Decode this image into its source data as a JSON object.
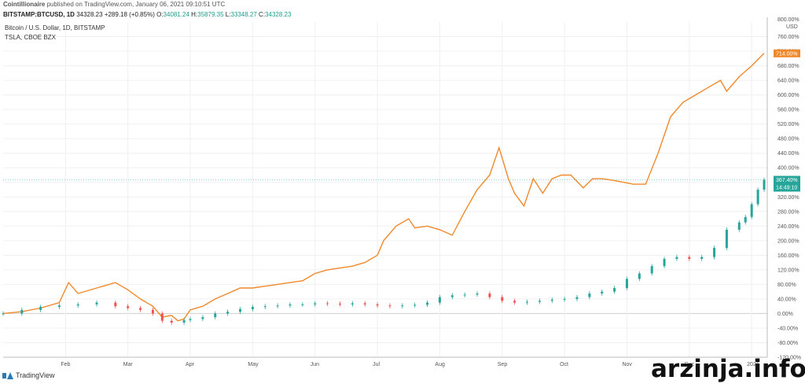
{
  "header": {
    "publisher": "Cointillionaire",
    "published_text": "published on TradingView.com, January 06, 2021 09:10:51 UTC",
    "symbol": "BITSTAMP:BTCUSD, 1D",
    "price": "34328.23",
    "change": "+289.18 (+0.85%)",
    "o_label": "O:",
    "o_value": "34081.24",
    "h_label": "H:",
    "h_value": "35879.35",
    "l_label": "L:",
    "l_value": "33348.27",
    "c_label": "C:",
    "c_value": "34328.23"
  },
  "legend": {
    "line1": "Bitcoin / U.S. Dollar, 1D, BITSTAMP",
    "line2": "TSLA, CBOE BZX"
  },
  "footer": {
    "logo_text": "TradingView"
  },
  "watermark": "arzinja.info",
  "colors": {
    "tsla": "#f0892b",
    "btc_up": "#26a69a",
    "btc_down": "#ef5350",
    "axis_label_btc": "#26a69a"
  },
  "chart_data": {
    "type": "line",
    "y_axis": {
      "unit_label": "USD",
      "top_tick": "800.00%",
      "ticks": [
        "760.00%",
        "720.00%",
        "680.00%",
        "640.00%",
        "600.00%",
        "560.00%",
        "520.00%",
        "480.00%",
        "440.00%",
        "400.00%",
        "360.00%",
        "320.00%",
        "280.00%",
        "240.00%",
        "200.00%",
        "160.00%",
        "120.00%",
        "80.00%",
        "40.00%",
        "0.00%",
        "-40.00%",
        "-80.00%",
        "-120.00%"
      ],
      "tick_values": [
        760,
        720,
        680,
        640,
        600,
        560,
        520,
        480,
        440,
        400,
        360,
        320,
        280,
        240,
        200,
        160,
        120,
        80,
        40,
        0,
        -40,
        -80,
        -120
      ],
      "range": [
        -120,
        800
      ]
    },
    "x_axis": {
      "labels": [
        "Feb",
        "Mar",
        "Apr",
        "May",
        "Jun",
        "Jul",
        "Aug",
        "Sep",
        "Oct",
        "Nov",
        "Dec",
        "2021"
      ],
      "label_positions": [
        1.0,
        2.0,
        3.0,
        4.0,
        5.0,
        6.0,
        7.0,
        8.0,
        9.0,
        10.0,
        11.0,
        12.0
      ],
      "range": [
        0.0,
        12.25
      ]
    },
    "price_tags": {
      "tsla": "714.00%",
      "btc": "367.40%",
      "countdown": "14:49:10"
    },
    "series": [
      {
        "name": "TSLA, CBOE BZX",
        "color": "#f0892b",
        "x": [
          0.0,
          0.3,
          0.6,
          0.9,
          1.05,
          1.2,
          1.5,
          1.8,
          2.0,
          2.2,
          2.4,
          2.55,
          2.7,
          2.8,
          2.9,
          3.0,
          3.2,
          3.4,
          3.6,
          3.8,
          4.0,
          4.2,
          4.4,
          4.6,
          4.8,
          5.0,
          5.2,
          5.4,
          5.6,
          5.8,
          6.0,
          6.1,
          6.3,
          6.5,
          6.6,
          6.8,
          7.0,
          7.2,
          7.4,
          7.6,
          7.8,
          7.95,
          8.1,
          8.2,
          8.35,
          8.5,
          8.65,
          8.8,
          8.95,
          9.1,
          9.3,
          9.45,
          9.6,
          9.8,
          9.95,
          10.1,
          10.3,
          10.5,
          10.7,
          10.9,
          11.1,
          11.3,
          11.5,
          11.6,
          11.8,
          12.0,
          12.2
        ],
        "y": [
          0,
          5,
          15,
          30,
          85,
          55,
          70,
          85,
          65,
          40,
          20,
          -10,
          -5,
          -20,
          -15,
          10,
          20,
          40,
          55,
          70,
          70,
          75,
          80,
          85,
          90,
          110,
          120,
          125,
          130,
          140,
          160,
          200,
          240,
          260,
          235,
          240,
          230,
          215,
          280,
          340,
          380,
          455,
          370,
          330,
          295,
          370,
          330,
          370,
          380,
          380,
          345,
          370,
          370,
          365,
          360,
          355,
          355,
          440,
          540,
          580,
          600,
          620,
          640,
          610,
          650,
          680,
          714
        ],
        "data_labels": []
      },
      {
        "name": "Bitcoin / U.S. Dollar, 1D, BITSTAMP",
        "color": "#26a69a",
        "x": [
          0.0,
          0.3,
          0.6,
          0.9,
          1.2,
          1.5,
          1.8,
          2.0,
          2.2,
          2.4,
          2.55,
          2.7,
          2.9,
          3.0,
          3.2,
          3.4,
          3.6,
          3.8,
          4.0,
          4.2,
          4.4,
          4.6,
          4.8,
          5.0,
          5.2,
          5.4,
          5.6,
          5.8,
          6.0,
          6.2,
          6.4,
          6.6,
          6.8,
          7.0,
          7.2,
          7.4,
          7.6,
          7.8,
          8.0,
          8.2,
          8.4,
          8.6,
          8.8,
          9.0,
          9.2,
          9.4,
          9.6,
          9.8,
          10.0,
          10.2,
          10.4,
          10.6,
          10.8,
          11.0,
          11.2,
          11.4,
          11.6,
          11.8,
          11.9,
          12.0,
          12.1,
          12.2
        ],
        "y": [
          0,
          10,
          18,
          22,
          25,
          30,
          20,
          15,
          10,
          0,
          -20,
          -25,
          -18,
          -15,
          -10,
          0,
          5,
          12,
          18,
          20,
          22,
          25,
          25,
          28,
          27,
          25,
          28,
          25,
          22,
          20,
          22,
          24,
          30,
          45,
          50,
          52,
          55,
          45,
          35,
          30,
          32,
          35,
          38,
          40,
          45,
          55,
          60,
          70,
          95,
          110,
          130,
          150,
          155,
          150,
          155,
          180,
          230,
          250,
          265,
          300,
          340,
          367
        ]
      }
    ]
  }
}
